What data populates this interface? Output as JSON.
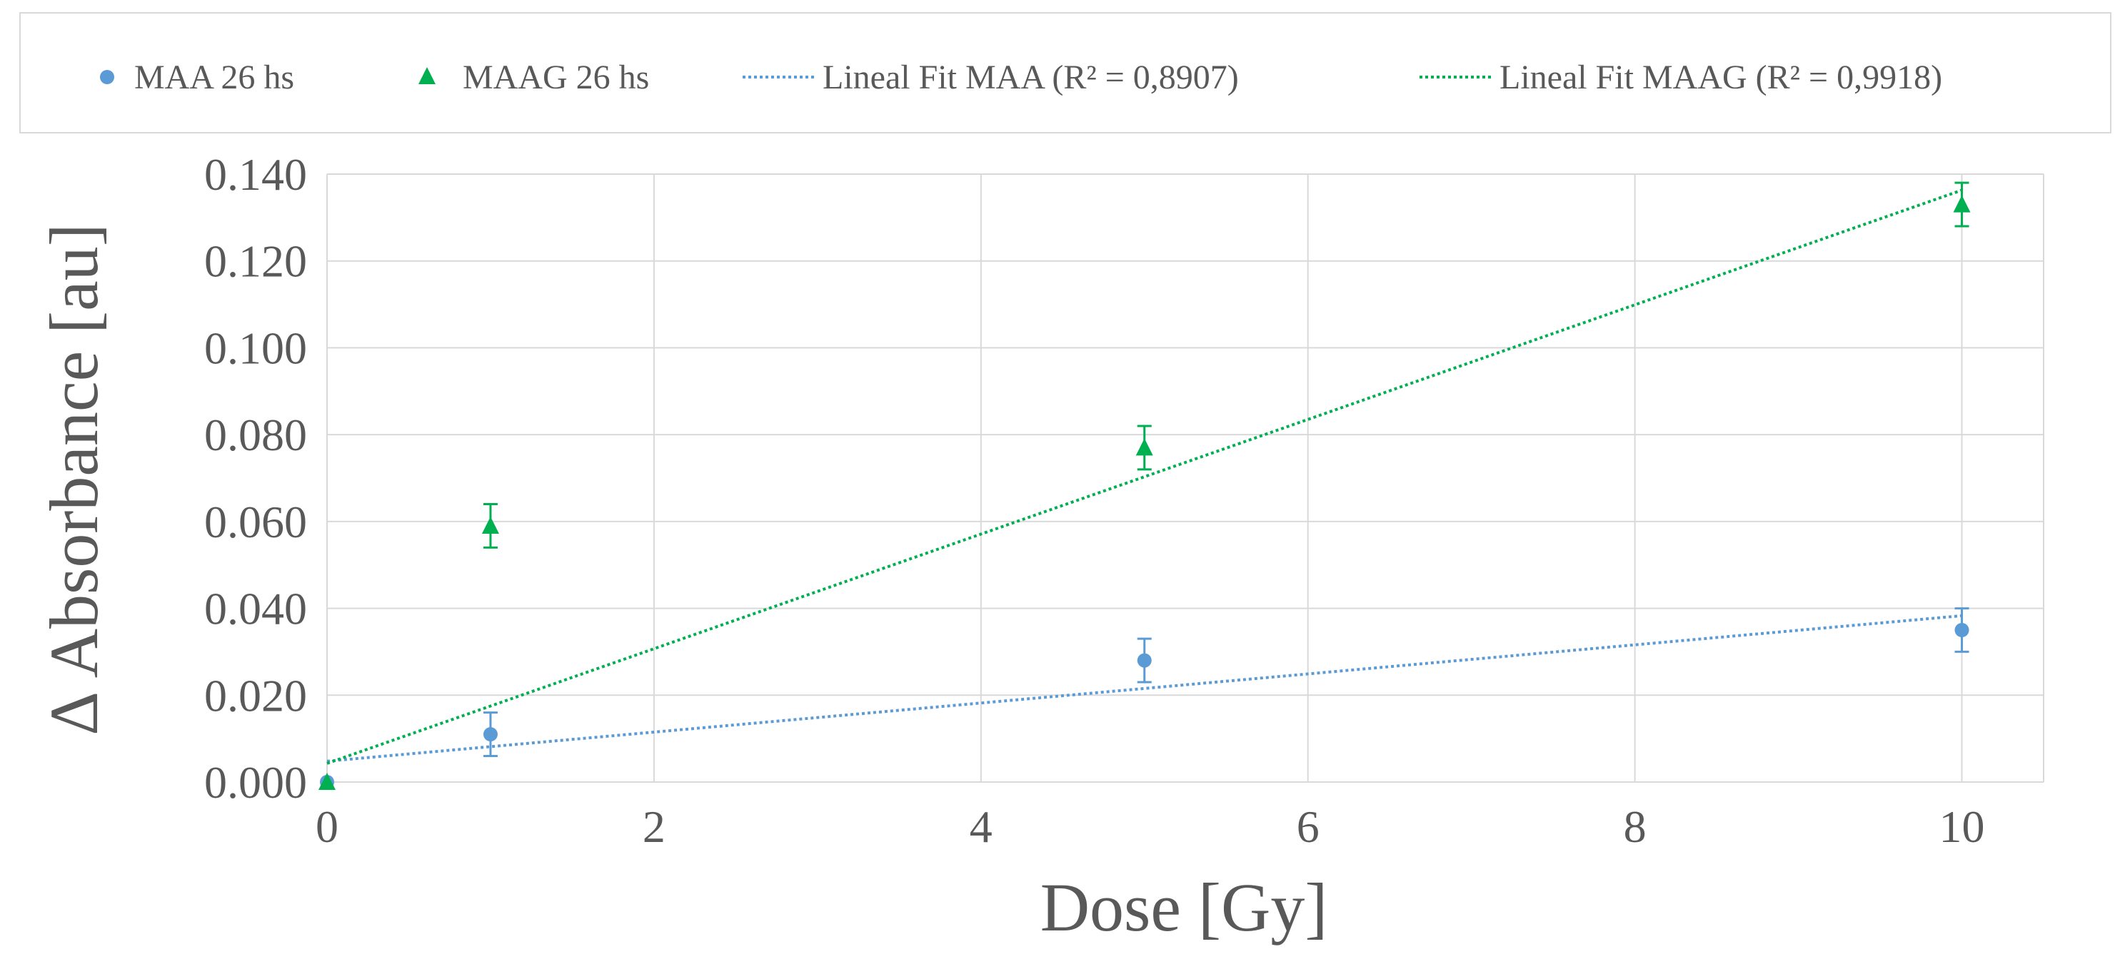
{
  "chart_data": {
    "type": "scatter",
    "title": "",
    "xlabel": "Dose [Gy]",
    "ylabel": "Δ Absorbance [au]",
    "xlim": [
      0,
      10.5
    ],
    "ylim": [
      0,
      0.14
    ],
    "x_ticks": [
      0,
      2,
      4,
      6,
      8,
      10
    ],
    "x_tick_labels": [
      "0",
      "2",
      "4",
      "6",
      "8",
      "10"
    ],
    "y_ticks": [
      0,
      0.02,
      0.04,
      0.06,
      0.08,
      0.1,
      0.12,
      0.14
    ],
    "y_tick_labels": [
      "0.000",
      "0.020",
      "0.040",
      "0.060",
      "0.080",
      "0.100",
      "0.120",
      "0.140"
    ],
    "grid": true,
    "legend_position": "top",
    "series": [
      {
        "name": "MAA 26 hs",
        "marker": "circle",
        "color": "#5B9BD5",
        "x": [
          0,
          1,
          5,
          10
        ],
        "y": [
          0.0,
          0.011,
          0.028,
          0.035
        ],
        "error": [
          0.0,
          0.005,
          0.005,
          0.005
        ]
      },
      {
        "name": "MAAG 26 hs",
        "marker": "triangle",
        "color": "#00B050",
        "x": [
          0,
          1,
          5,
          10
        ],
        "y": [
          0.0,
          0.059,
          0.077,
          0.133
        ],
        "error": [
          0.0,
          0.005,
          0.005,
          0.005
        ]
      }
    ],
    "fits": [
      {
        "name": "Lineal Fit MAA (R² = 0,8907)",
        "color": "#5B9BD5",
        "x": [
          0,
          10
        ],
        "y": [
          0.0048,
          0.0383
        ]
      },
      {
        "name": "Lineal Fit MAAG (R² = 0,9918)",
        "color": "#00B050",
        "x": [
          0,
          10
        ],
        "y": [
          0.0043,
          0.1363
        ]
      }
    ],
    "colors": {
      "grid": "#D9D9D9",
      "text": "#595959",
      "legend_border": "#D9D9D9"
    }
  }
}
